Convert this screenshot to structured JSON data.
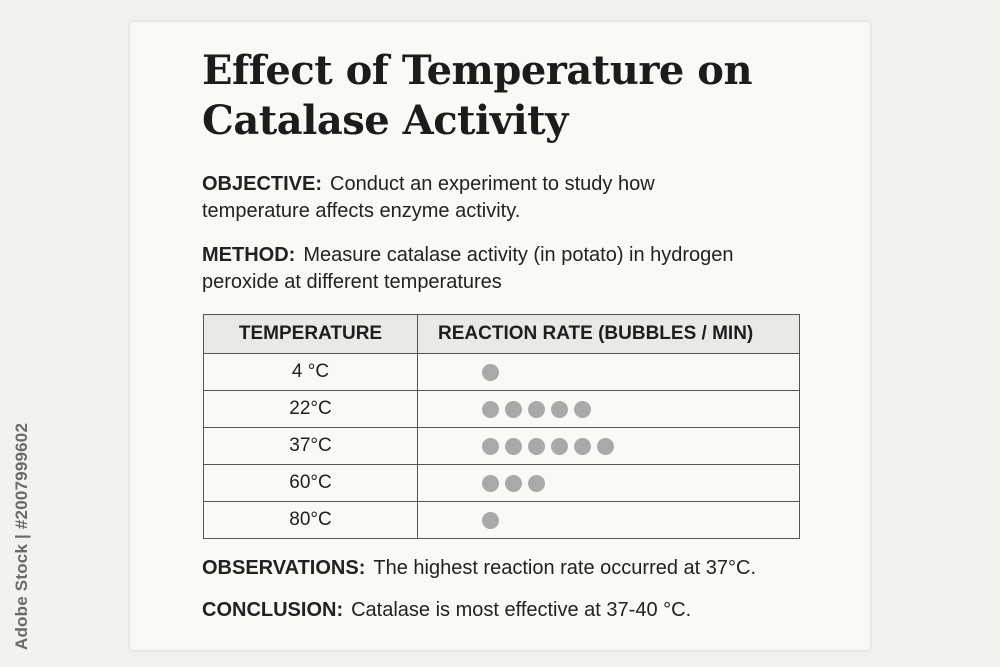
{
  "title": "Effect of Temperature on Catalase Activity",
  "objective": {
    "label": "OBJECTIVE:",
    "text": "Conduct an experiment to study how temperature affects enzyme activity."
  },
  "method": {
    "label": "METHOD:",
    "text": "Measure catalase activity (in potato) in hydrogen peroxide at different temperatures"
  },
  "table": {
    "headers": [
      "TEMPERATURE",
      "REACTION RATE (BUBBLES / MIN)"
    ],
    "rows": [
      {
        "temperature": "4 °C",
        "bubbles": 1
      },
      {
        "temperature": "22°C",
        "bubbles": 5
      },
      {
        "temperature": "37°C",
        "bubbles": 6
      },
      {
        "temperature": "60°C",
        "bubbles": 3
      },
      {
        "temperature": "80°C",
        "bubbles": 1
      }
    ]
  },
  "observations": {
    "label": "OBSERVATIONS:",
    "text": "The highest reaction rate occurred at 37°C."
  },
  "conclusion": {
    "label": "CONCLUSION:",
    "text": "Catalase is most effective at 37-40 °C."
  },
  "watermark": {
    "stock_id": "Adobe Stock | #2007999602"
  },
  "colors": {
    "bubble": "#a9a9a9",
    "header_bg": "#ebe9e5",
    "sheet_bg": "#faf9f6"
  }
}
